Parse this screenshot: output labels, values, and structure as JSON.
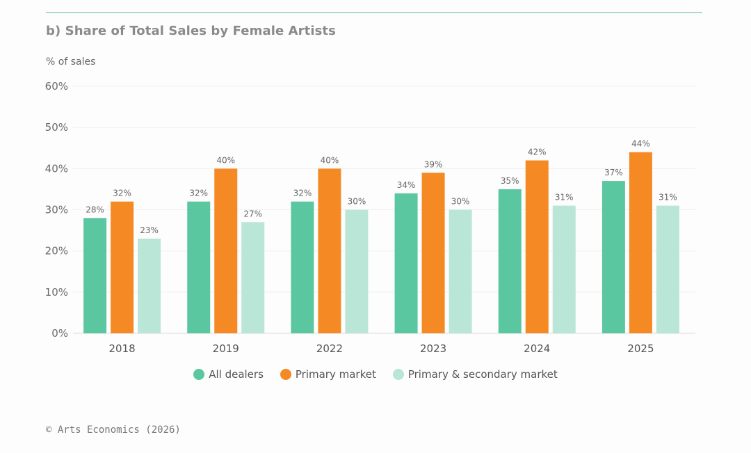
{
  "header": {
    "title": "b) Share of Total Sales by Female Artists",
    "ylabel": "% of sales"
  },
  "footer": {
    "credit": "© Arts Economics (2026)"
  },
  "chart_data": {
    "type": "bar",
    "title": "b) Share of Total Sales by Female Artists",
    "ylabel": "% of sales",
    "xlabel": "",
    "categories": [
      "2018",
      "2019",
      "2022",
      "2023",
      "2024",
      "2025"
    ],
    "ylim": [
      0,
      60
    ],
    "yticks": [
      0,
      10,
      20,
      30,
      40,
      50,
      60
    ],
    "ytick_labels": [
      "0%",
      "10%",
      "20%",
      "30%",
      "40%",
      "50%",
      "60%"
    ],
    "grid": true,
    "legend_position": "bottom-center",
    "series": [
      {
        "name": "All dealers",
        "color": "#5bc7a0",
        "values": [
          28,
          32,
          32,
          34,
          35,
          37
        ],
        "labels": [
          "28%",
          "32%",
          "32%",
          "34%",
          "35%",
          "37%"
        ]
      },
      {
        "name": "Primary market",
        "color": "#f58a25",
        "values": [
          32,
          40,
          40,
          39,
          42,
          44
        ],
        "labels": [
          "32%",
          "40%",
          "40%",
          "39%",
          "42%",
          "44%"
        ]
      },
      {
        "name": "Primary & secondary market",
        "color": "#b9e6d6",
        "values": [
          23,
          27,
          30,
          30,
          31,
          31
        ],
        "labels": [
          "23%",
          "27%",
          "30%",
          "30%",
          "31%",
          "31%"
        ]
      }
    ]
  }
}
